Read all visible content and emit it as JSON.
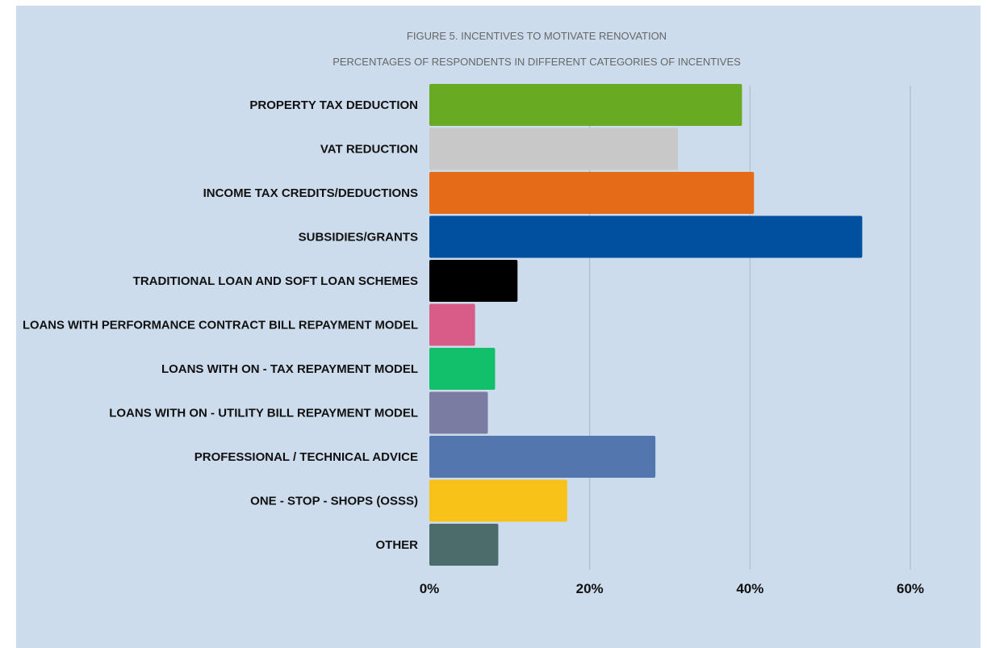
{
  "chart_data": {
    "type": "bar",
    "orientation": "horizontal",
    "title": "FIGURE 5. INCENTIVES TO MOTIVATE RENOVATION",
    "subtitle": "PERCENTAGES OF RESPONDENTS IN DIFFERENT CATEGORIES OF INCENTIVES",
    "xlabel": "",
    "ylabel": "",
    "xlim": [
      0,
      60
    ],
    "x_tick_labels": [
      "0%",
      "20%",
      "40%",
      "60%"
    ],
    "x_tick_values": [
      0,
      20,
      40,
      60
    ],
    "grid": true,
    "legend": "none",
    "categories": [
      "PROPERTY TAX DEDUCTION",
      "VAT REDUCTION",
      "INCOME TAX CREDITS/DEDUCTIONS",
      "SUBSIDIES/GRANTS",
      "TRADITIONAL LOAN AND SOFT LOAN SCHEMES",
      "LOANS WITH PERFORMANCE CONTRACT BILL REPAYMENT MODEL",
      "LOANS WITH ON - TAX REPAYMENT MODEL",
      "LOANS WITH ON - UTILITY BILL REPAYMENT MODEL",
      "PROFESSIONAL / TECHNICAL ADVICE",
      "ONE - STOP - SHOPS (OSSS)",
      "OTHER"
    ],
    "values": [
      39,
      31,
      40.5,
      54,
      11,
      5.7,
      8.2,
      7.3,
      28.2,
      17.2,
      8.6
    ],
    "colors": [
      "#66ab22",
      "#c8c8c8",
      "#e66b19",
      "#0050a0",
      "#000000",
      "#d85c88",
      "#12c06b",
      "#7a7ca2",
      "#5276ae",
      "#f8c219",
      "#4c6b6b"
    ]
  },
  "style": {
    "background": "#ccdcec",
    "gridline_color": "#a9b5c3"
  }
}
